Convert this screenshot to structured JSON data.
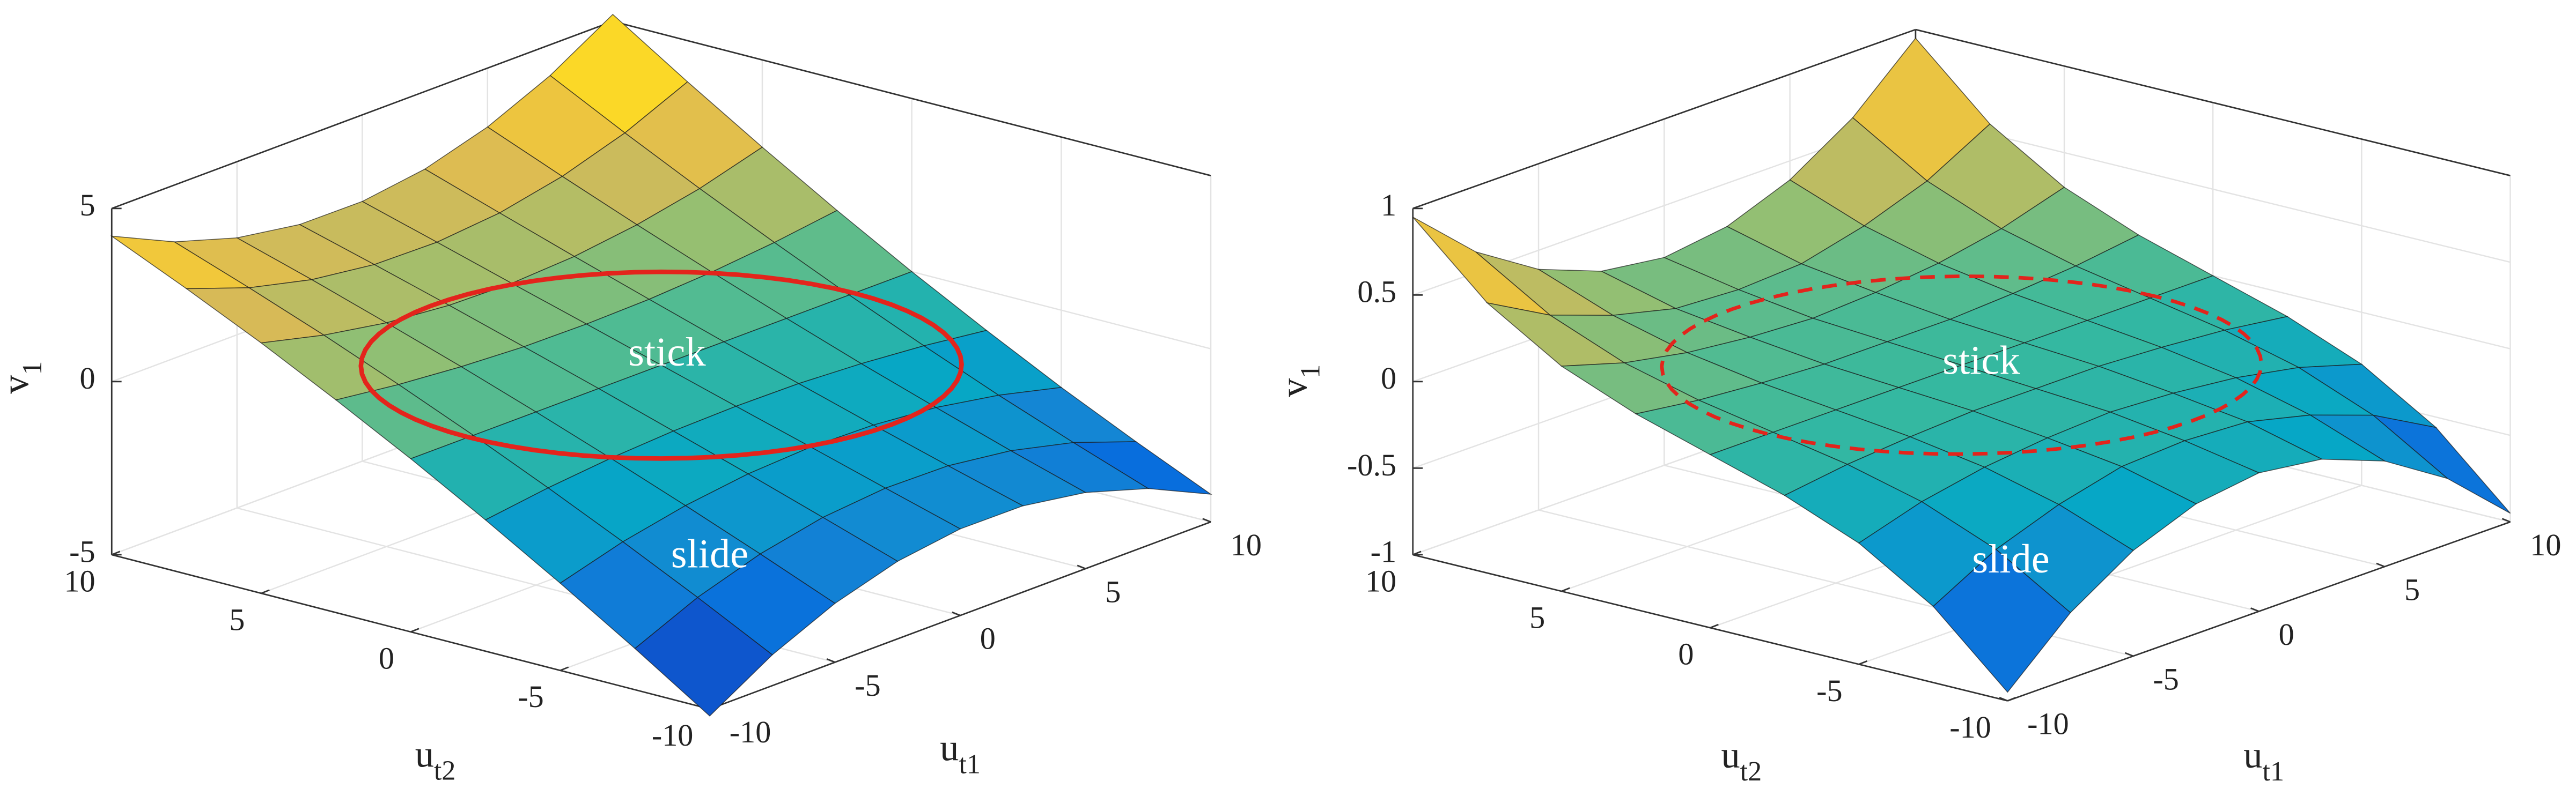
{
  "chart_data": [
    {
      "type": "surface",
      "x": [
        -10,
        -7.5,
        -5,
        -2.5,
        0,
        2.5,
        5,
        7.5,
        10
      ],
      "y": [
        -10,
        -7.5,
        -5,
        -2.5,
        0,
        2.5,
        5,
        7.5,
        10
      ],
      "z": [
        [
          -5.2,
          -4.11,
          -3.3,
          -2.76,
          -2.5,
          -2.51,
          -2.8,
          -3.36,
          -4.2
        ],
        [
          -3.81,
          -3.01,
          -2.43,
          -2.05,
          -1.88,
          -1.91,
          -2.15,
          -2.59,
          -3.24
        ],
        [
          -2.48,
          -1.96,
          -1.59,
          -1.35,
          -1.25,
          -1.29,
          -1.46,
          -1.78,
          -2.23
        ],
        [
          -1.21,
          -0.96,
          -0.78,
          -0.67,
          -0.63,
          -0.65,
          -0.75,
          -0.91,
          -1.14
        ],
        [
          0,
          0,
          0,
          0,
          0,
          0,
          0,
          0,
          0
        ],
        [
          1.14,
          0.91,
          0.75,
          0.65,
          0.63,
          0.67,
          0.78,
          0.96,
          1.21
        ],
        [
          2.23,
          1.78,
          1.46,
          1.29,
          1.25,
          1.35,
          1.59,
          1.96,
          2.48
        ],
        [
          3.24,
          2.59,
          2.15,
          1.91,
          1.88,
          2.05,
          2.43,
          3.01,
          3.81
        ],
        [
          4.2,
          3.36,
          2.8,
          2.51,
          2.5,
          2.76,
          3.3,
          4.11,
          5.2
        ]
      ],
      "xlabel": {
        "base": "u",
        "sub": "t1"
      },
      "ylabel": {
        "base": "u",
        "sub": "t2"
      },
      "zlabel": {
        "base": "v",
        "sub": "1"
      },
      "xlim": [
        -10,
        10
      ],
      "xticks": [
        -10,
        -5,
        0,
        5,
        10
      ],
      "ylim": [
        -10,
        10
      ],
      "yticks": [
        -10,
        -5,
        0,
        5,
        10
      ],
      "zlim": [
        -5,
        5
      ],
      "zticks": [
        -5,
        0,
        5
      ],
      "grid": true,
      "colormap": "parula",
      "edge_color": "#1a1a1a",
      "boundary": {
        "radius": 7.7,
        "color": "#e3241c",
        "style": "solid"
      },
      "annotations": [
        "stick",
        "slide"
      ]
    },
    {
      "type": "surface",
      "x": [
        -10,
        -7.5,
        -5,
        -2.5,
        0,
        2.5,
        5,
        7.5,
        10
      ],
      "y": [
        -10,
        -7.5,
        -5,
        -2.5,
        0,
        2.5,
        5,
        7.5,
        10
      ],
      "z": [
        [
          -0.95,
          -0.62,
          -0.39,
          -0.25,
          -0.2,
          -0.25,
          -0.39,
          -0.62,
          -0.95
        ],
        [
          -0.56,
          -0.36,
          -0.23,
          -0.14,
          -0.12,
          -0.14,
          -0.23,
          -0.36,
          -0.56
        ],
        [
          -0.3,
          -0.19,
          -0.12,
          -0.08,
          -0.06,
          -0.08,
          -0.12,
          -0.19,
          -0.3
        ],
        [
          -0.13,
          -0.08,
          -0.05,
          -0.03,
          -0.03,
          -0.03,
          -0.05,
          -0.08,
          -0.13
        ],
        [
          0,
          0,
          0,
          0,
          0,
          0,
          0,
          0,
          0
        ],
        [
          0.13,
          0.08,
          0.05,
          0.03,
          0.03,
          0.03,
          0.05,
          0.08,
          0.13
        ],
        [
          0.3,
          0.19,
          0.12,
          0.08,
          0.06,
          0.08,
          0.12,
          0.19,
          0.3
        ],
        [
          0.56,
          0.36,
          0.23,
          0.14,
          0.12,
          0.14,
          0.23,
          0.36,
          0.56
        ],
        [
          0.95,
          0.62,
          0.39,
          0.25,
          0.2,
          0.25,
          0.39,
          0.62,
          0.95
        ]
      ],
      "xlabel": {
        "base": "u",
        "sub": "t1"
      },
      "ylabel": {
        "base": "u",
        "sub": "t2"
      },
      "zlabel": {
        "base": "v",
        "sub": "1"
      },
      "xlim": [
        -10,
        10
      ],
      "xticks": [
        -10,
        -5,
        0,
        5,
        10
      ],
      "ylim": [
        -10,
        10
      ],
      "yticks": [
        -10,
        -5,
        0,
        5,
        10
      ],
      "zlim": [
        -1,
        1
      ],
      "zticks": [
        -1,
        -0.5,
        0,
        0.5,
        1
      ],
      "grid": true,
      "colormap": "parula",
      "edge_color": "#1a1a1a",
      "boundary": {
        "radius": 7.7,
        "color": "#e3241c",
        "style": "dashed"
      },
      "annotations": [
        "stick",
        "slide"
      ]
    }
  ]
}
